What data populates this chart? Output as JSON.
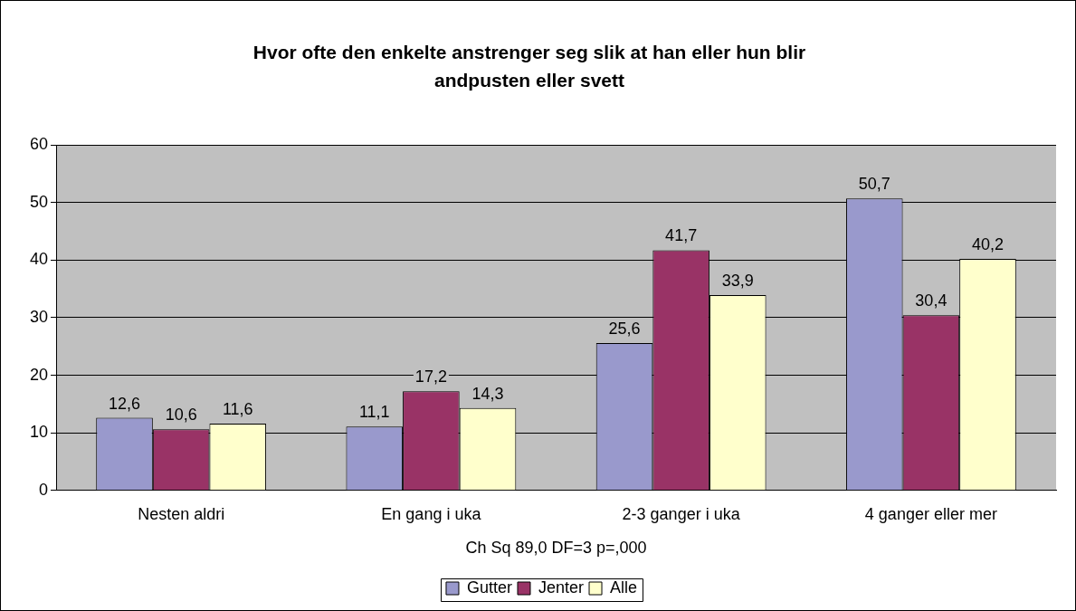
{
  "chart_data": {
    "type": "bar",
    "title": "Hvor ofte den enkelte anstrenger seg slik at han eller hun blir andpusten eller svett",
    "xlabel": "Ch Sq 89,0 DF=3 p=,000",
    "categories": [
      "Nesten aldri",
      "En gang i uka",
      "2-3 ganger i uka",
      "4 ganger eller mer"
    ],
    "series": [
      {
        "name": "Gutter",
        "color": "#9999cc",
        "values": [
          12.6,
          11.1,
          25.6,
          50.7
        ],
        "value_labels": [
          "12,6",
          "11,1",
          "25,6",
          "50,7"
        ]
      },
      {
        "name": "Jenter",
        "color": "#993366",
        "values": [
          10.6,
          17.2,
          41.7,
          30.4
        ],
        "value_labels": [
          "10,6",
          "17,2",
          "41,7",
          "30,4"
        ]
      },
      {
        "name": "Alle",
        "color": "#ffffcc",
        "values": [
          11.6,
          14.3,
          33.9,
          40.2
        ],
        "value_labels": [
          "11,6",
          "14,3",
          "33,9",
          "40,2"
        ]
      }
    ],
    "ylim": [
      0,
      60
    ],
    "yticks": [
      0,
      10,
      20,
      30,
      40,
      50,
      60
    ],
    "grid": "y",
    "legend": "bottom"
  }
}
